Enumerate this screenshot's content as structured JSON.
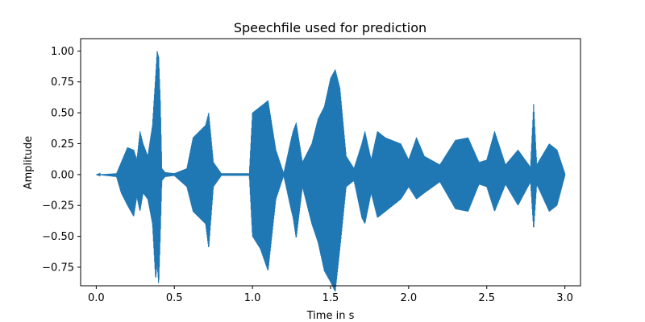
{
  "chart_data": {
    "type": "line",
    "title": "Speechfile used for prediction",
    "xlabel": "Time in s",
    "ylabel": "Amplitude",
    "xlim": [
      -0.1,
      3.1
    ],
    "ylim": [
      -0.9,
      1.1
    ],
    "x_ticks": [
      "0.0",
      "0.5",
      "1.0",
      "1.5",
      "2.0",
      "2.5",
      "3.0"
    ],
    "y_ticks": [
      "1.00",
      "0.75",
      "0.50",
      "0.25",
      "0.00",
      "−0.25",
      "−0.50",
      "−0.75"
    ],
    "grid": false,
    "series": [
      {
        "color": "#1f77b4",
        "x": [
          0.0,
          0.13,
          0.16,
          0.2,
          0.24,
          0.26,
          0.28,
          0.3,
          0.33,
          0.36,
          0.38,
          0.39,
          0.4,
          0.41,
          0.42,
          0.44,
          0.5,
          0.58,
          0.62,
          0.66,
          0.7,
          0.72,
          0.75,
          0.8,
          0.9,
          0.98,
          1.0,
          1.05,
          1.1,
          1.15,
          1.2,
          1.25,
          1.26,
          1.28,
          1.32,
          1.38,
          1.42,
          1.46,
          1.5,
          1.53,
          1.56,
          1.6,
          1.65,
          1.7,
          1.72,
          1.76,
          1.8,
          1.85,
          1.95,
          2.0,
          2.05,
          2.1,
          2.2,
          2.3,
          2.38,
          2.45,
          2.5,
          2.55,
          2.62,
          2.7,
          2.78,
          2.8,
          2.82,
          2.9,
          2.95,
          3.0
        ],
        "upper": [
          0.0,
          0.01,
          0.1,
          0.22,
          0.2,
          0.12,
          0.35,
          0.25,
          0.15,
          0.4,
          0.8,
          1.0,
          0.95,
          0.6,
          0.05,
          0.02,
          0.01,
          0.05,
          0.3,
          0.35,
          0.4,
          0.5,
          0.1,
          0.01,
          0.01,
          0.01,
          0.5,
          0.55,
          0.6,
          0.2,
          0.01,
          0.3,
          0.35,
          0.42,
          0.1,
          0.25,
          0.45,
          0.55,
          0.78,
          0.85,
          0.7,
          0.15,
          0.05,
          0.25,
          0.35,
          0.12,
          0.35,
          0.3,
          0.25,
          0.12,
          0.3,
          0.15,
          0.08,
          0.28,
          0.3,
          0.1,
          0.12,
          0.35,
          0.08,
          0.2,
          0.06,
          0.57,
          0.08,
          0.25,
          0.2,
          0.01
        ],
        "lower": [
          0.0,
          -0.02,
          -0.15,
          -0.25,
          -0.34,
          -0.18,
          -0.3,
          -0.15,
          -0.2,
          -0.4,
          -0.85,
          -0.72,
          -0.9,
          -0.5,
          -0.05,
          -0.02,
          -0.01,
          -0.1,
          -0.3,
          -0.35,
          -0.4,
          -0.6,
          -0.1,
          -0.01,
          -0.01,
          -0.01,
          -0.5,
          -0.6,
          -0.78,
          -0.2,
          -0.01,
          -0.3,
          -0.35,
          -0.52,
          -0.1,
          -0.4,
          -0.55,
          -0.78,
          -0.87,
          -0.95,
          -0.6,
          -0.1,
          -0.05,
          -0.35,
          -0.4,
          -0.15,
          -0.35,
          -0.3,
          -0.2,
          -0.1,
          -0.2,
          -0.15,
          -0.06,
          -0.28,
          -0.3,
          -0.08,
          -0.1,
          -0.3,
          -0.08,
          -0.25,
          -0.06,
          -0.45,
          -0.08,
          -0.3,
          -0.25,
          -0.01
        ]
      }
    ]
  }
}
